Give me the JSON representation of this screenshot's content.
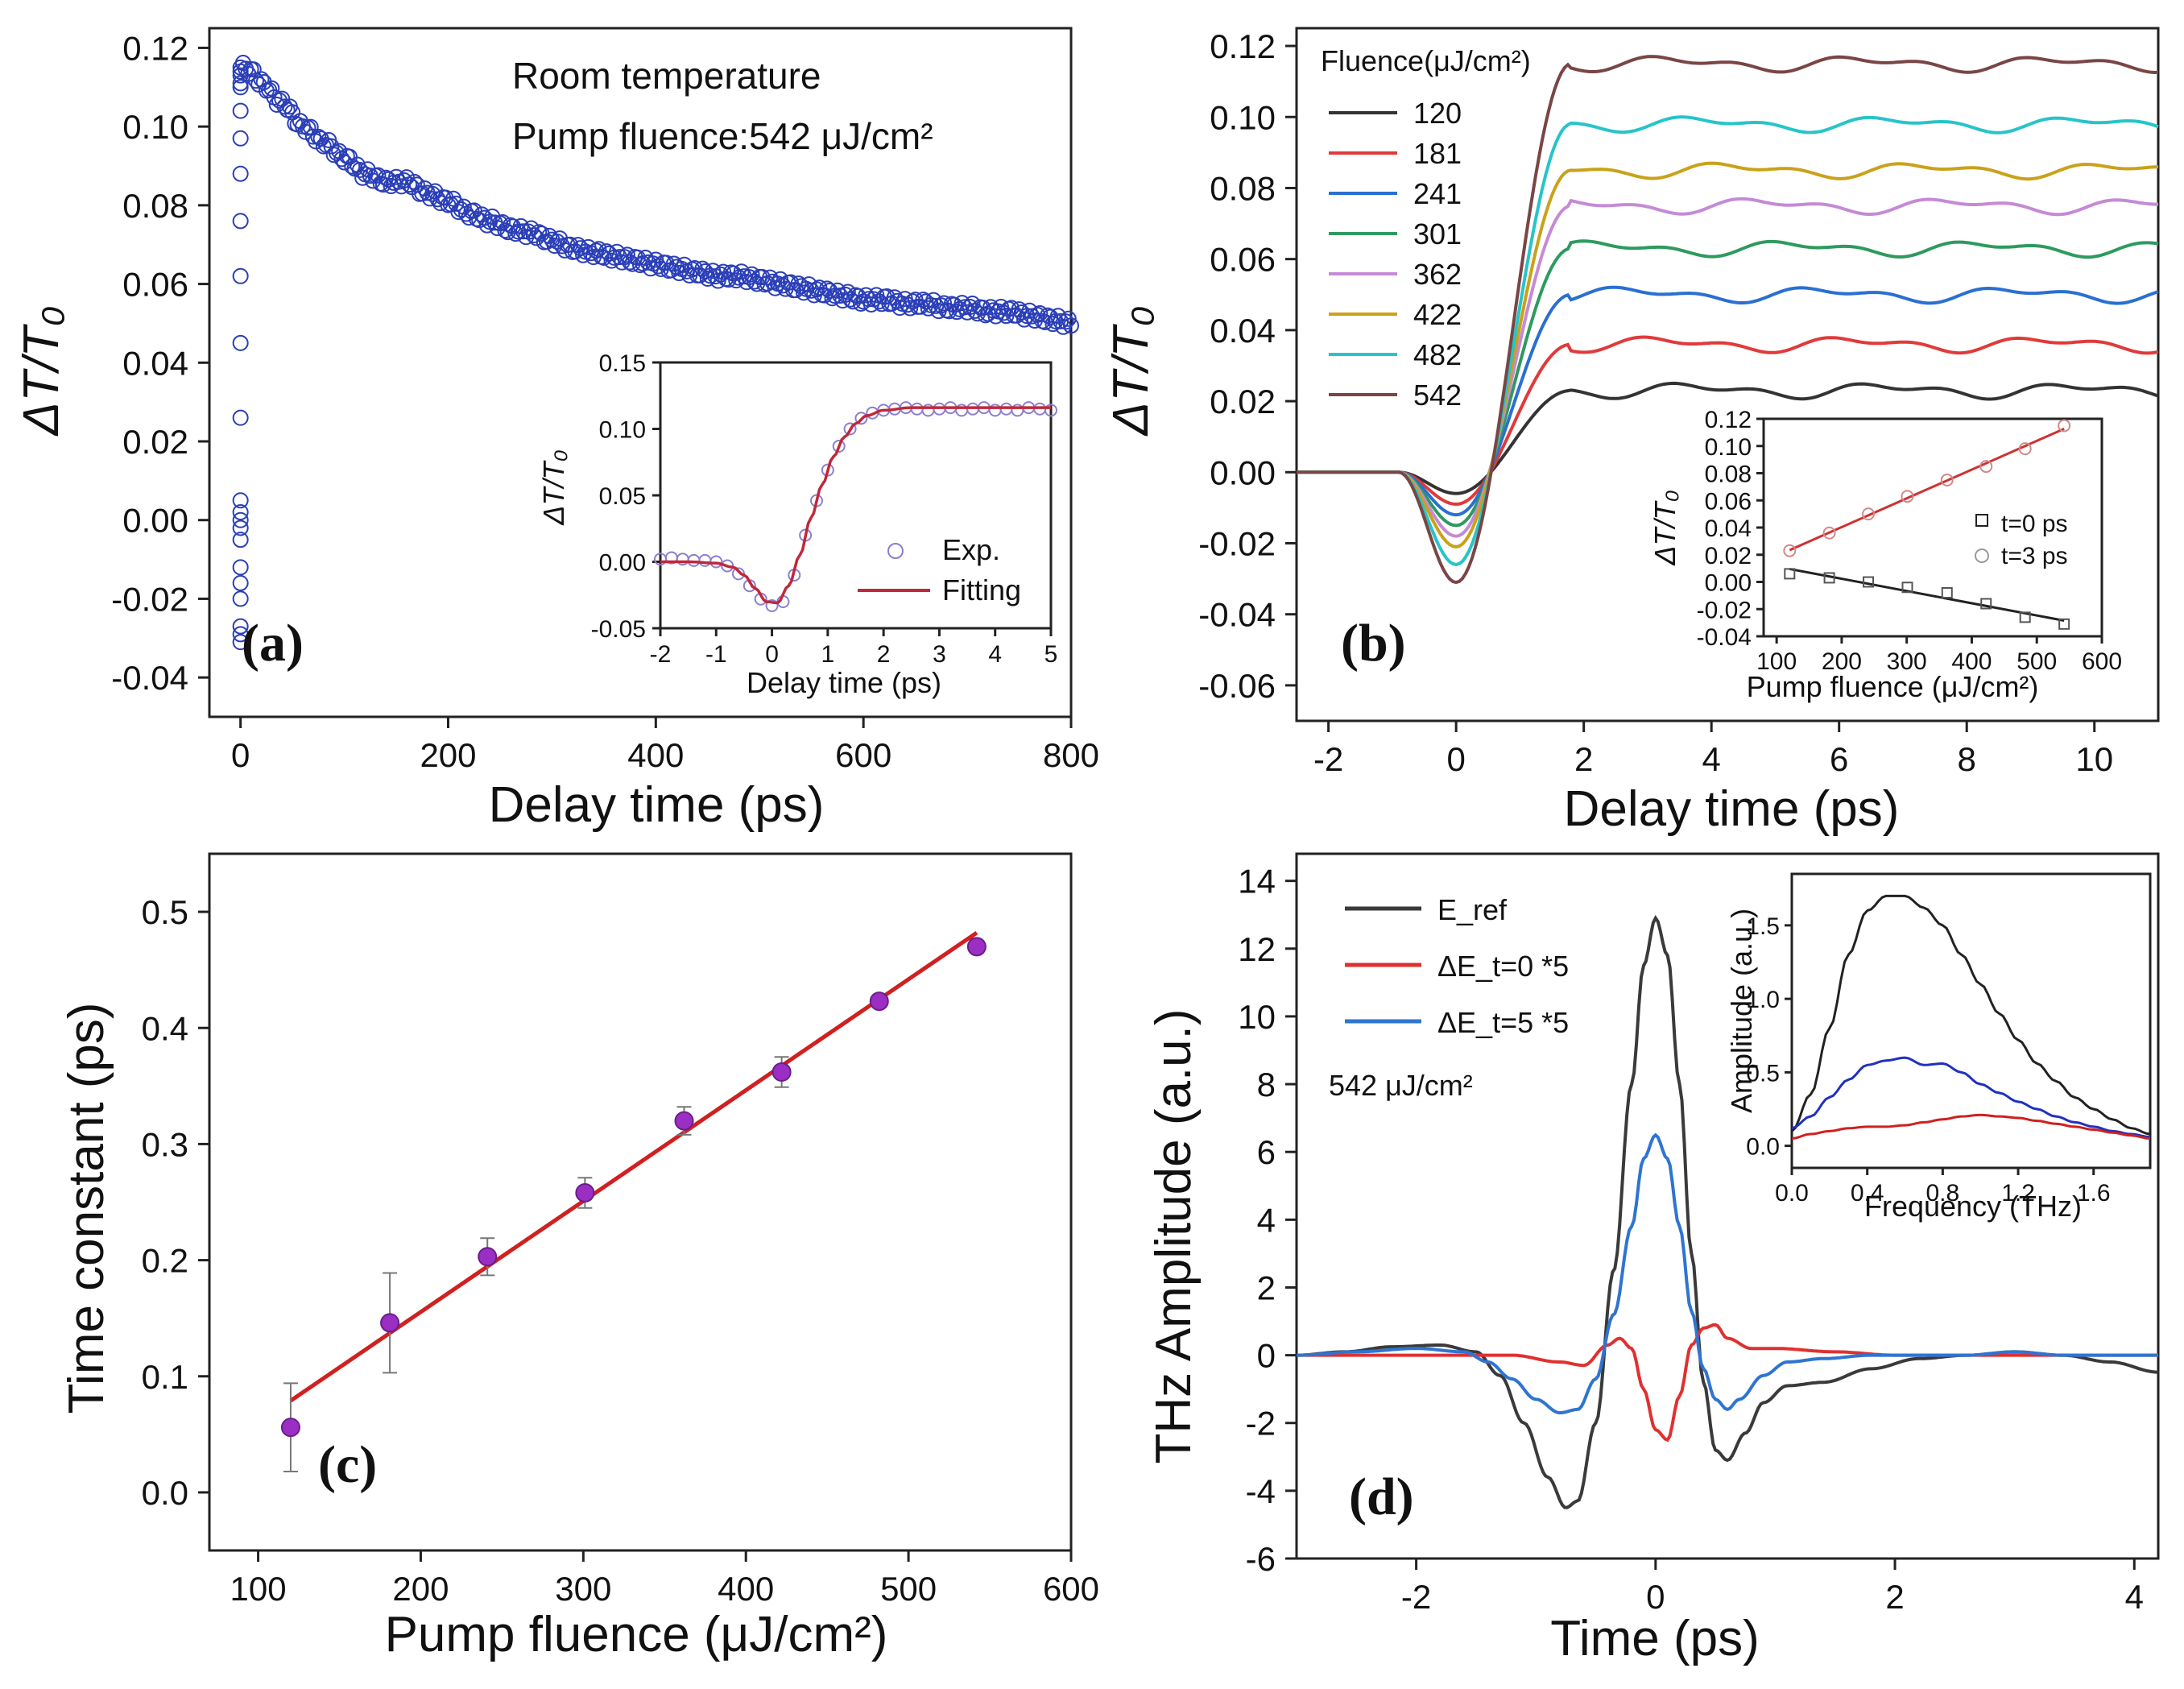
{
  "chart_data": [
    {
      "id": "a",
      "type": "scatter",
      "panel_label": "(a)",
      "annotations": [
        "Room temperature",
        "Pump fluence:542 μJ/cm²"
      ],
      "xlabel": "Delay time (ps)",
      "ylabel": "ΔT/T₀",
      "xlim": [
        -30,
        800
      ],
      "ylim": [
        -0.05,
        0.125
      ],
      "xticks": [
        0,
        200,
        400,
        600,
        800
      ],
      "yticks": [
        -0.04,
        -0.02,
        0.0,
        0.02,
        0.04,
        0.06,
        0.08,
        0.1,
        0.12
      ],
      "ytick_labels": [
        "-0.04",
        "-0.02",
        "0.00",
        "0.02",
        "0.04",
        "0.06",
        "0.08",
        "0.10",
        "0.12"
      ],
      "series": [
        {
          "name": "Exp.",
          "color": "#2b3fb8",
          "marker": "circle",
          "x": [
            0,
            0,
            0,
            0,
            0,
            0,
            0,
            0,
            0,
            0,
            0,
            0,
            0,
            0,
            0,
            0,
            0,
            0,
            0,
            0,
            0,
            0,
            0,
            5,
            10,
            20,
            40,
            60,
            80,
            100,
            120,
            140,
            160,
            180,
            200,
            220,
            240,
            260,
            280,
            300,
            320,
            340,
            360,
            380,
            400,
            420,
            440,
            460,
            480,
            500,
            520,
            540,
            560,
            580,
            600,
            620,
            640,
            660,
            680,
            700,
            720,
            740,
            760,
            780,
            800
          ],
          "y": [
            -0.031,
            -0.029,
            -0.027,
            -0.02,
            -0.016,
            -0.012,
            -0.005,
            -0.002,
            0.0,
            0.002,
            0.005,
            0.026,
            0.045,
            0.062,
            0.076,
            0.088,
            0.097,
            0.104,
            0.11,
            0.111,
            0.113,
            0.114,
            0.115,
            0.115,
            0.114,
            0.111,
            0.106,
            0.1,
            0.096,
            0.092,
            0.088,
            0.086,
            0.086,
            0.083,
            0.081,
            0.078,
            0.076,
            0.074,
            0.073,
            0.071,
            0.069,
            0.068,
            0.067,
            0.066,
            0.065,
            0.064,
            0.063,
            0.062,
            0.062,
            0.061,
            0.06,
            0.059,
            0.058,
            0.057,
            0.056,
            0.056,
            0.055,
            0.055,
            0.054,
            0.054,
            0.053,
            0.053,
            0.052,
            0.051,
            0.05
          ]
        }
      ],
      "inset": {
        "xlabel": "Delay time (ps)",
        "ylabel": "ΔT/T₀",
        "xlim": [
          -2,
          5
        ],
        "ylim": [
          -0.05,
          0.15
        ],
        "xticks": [
          -2,
          -1,
          0,
          1,
          2,
          3,
          4,
          5
        ],
        "yticks": [
          -0.05,
          0.0,
          0.05,
          0.1,
          0.15
        ],
        "ytick_labels": [
          "-0.05",
          "0.00",
          "0.05",
          "0.10",
          "0.15"
        ],
        "legend": [
          "Exp.",
          "Fitting"
        ],
        "exp": {
          "x": [
            -2,
            -1.8,
            -1.6,
            -1.4,
            -1.2,
            -1.0,
            -0.8,
            -0.6,
            -0.4,
            -0.2,
            0.0,
            0.2,
            0.4,
            0.6,
            0.8,
            1.0,
            1.2,
            1.4,
            1.6,
            1.8,
            2.0,
            2.2,
            2.4,
            2.6,
            2.8,
            3.0,
            3.2,
            3.4,
            3.6,
            3.8,
            4.0,
            4.2,
            4.4,
            4.6,
            4.8,
            5.0
          ],
          "y": [
            0.002,
            0.003,
            0.002,
            0.001,
            0.001,
            0.0,
            -0.003,
            -0.009,
            -0.018,
            -0.028,
            -0.033,
            -0.03,
            -0.01,
            0.02,
            0.046,
            0.069,
            0.087,
            0.1,
            0.108,
            0.112,
            0.114,
            0.115,
            0.116,
            0.115,
            0.114,
            0.115,
            0.116,
            0.114,
            0.115,
            0.116,
            0.114,
            0.115,
            0.114,
            0.116,
            0.115,
            0.114
          ]
        },
        "fit": {
          "x": [
            -2,
            -1.5,
            -1.0,
            -0.7,
            -0.5,
            -0.3,
            -0.1,
            0.1,
            0.3,
            0.5,
            0.7,
            0.9,
            1.1,
            1.3,
            1.5,
            1.7,
            2.0,
            2.5,
            3.0,
            4.0,
            5.0
          ],
          "y": [
            0.0,
            0.0,
            -0.001,
            -0.004,
            -0.01,
            -0.02,
            -0.03,
            -0.031,
            -0.018,
            0.005,
            0.033,
            0.058,
            0.079,
            0.094,
            0.104,
            0.11,
            0.114,
            0.116,
            0.116,
            0.116,
            0.116
          ]
        }
      }
    },
    {
      "id": "b",
      "type": "line",
      "panel_label": "(b)",
      "xlabel": "Delay time (ps)",
      "ylabel": "ΔT/T₀",
      "xlim": [
        -2.5,
        11
      ],
      "ylim": [
        -0.07,
        0.125
      ],
      "xticks": [
        -2,
        0,
        2,
        4,
        6,
        8,
        10
      ],
      "yticks": [
        -0.06,
        -0.04,
        -0.02,
        0.0,
        0.02,
        0.04,
        0.06,
        0.08,
        0.1,
        0.12
      ],
      "ytick_labels": [
        "-0.06",
        "-0.04",
        "-0.02",
        "0.00",
        "0.02",
        "0.04",
        "0.06",
        "0.08",
        "0.10",
        "0.12"
      ],
      "legend_title": "Fluence(μJ/cm²)",
      "series": [
        {
          "name": "120",
          "color": "#333333",
          "dip": -0.006,
          "plateau": 0.023
        },
        {
          "name": "181",
          "color": "#e03a3a",
          "dip": -0.009,
          "plateau": 0.036
        },
        {
          "name": "241",
          "color": "#2a6fd1",
          "dip": -0.012,
          "plateau": 0.05
        },
        {
          "name": "301",
          "color": "#2e9a5f",
          "dip": -0.015,
          "plateau": 0.063
        },
        {
          "name": "362",
          "color": "#c58ad6",
          "dip": -0.018,
          "plateau": 0.075
        },
        {
          "name": "422",
          "color": "#c9a21a",
          "dip": -0.021,
          "plateau": 0.085
        },
        {
          "name": "482",
          "color": "#27c4c9",
          "dip": -0.026,
          "plateau": 0.098
        },
        {
          "name": "542",
          "color": "#7a4545",
          "dip": -0.031,
          "plateau": 0.115
        }
      ],
      "inset": {
        "xlabel": "Pump fluence (μJ/cm²)",
        "ylabel": "ΔT/T₀",
        "xlim": [
          80,
          600
        ],
        "ylim": [
          -0.04,
          0.12
        ],
        "xticks": [
          100,
          200,
          300,
          400,
          500,
          600
        ],
        "yticks": [
          -0.04,
          -0.02,
          0.0,
          0.02,
          0.04,
          0.06,
          0.08,
          0.1,
          0.12
        ],
        "ytick_labels": [
          "-0.04",
          "-0.02",
          "0.00",
          "0.02",
          "0.04",
          "0.06",
          "0.08",
          "0.10",
          "0.12"
        ],
        "legend": [
          "t=0 ps",
          "t=3 ps"
        ],
        "fluence": [
          120,
          181,
          241,
          301,
          362,
          422,
          482,
          542
        ],
        "t0": [
          0.006,
          0.003,
          0.0,
          -0.004,
          -0.008,
          -0.016,
          -0.026,
          -0.031
        ],
        "t3": [
          0.023,
          0.036,
          0.05,
          0.063,
          0.075,
          0.085,
          0.098,
          0.115
        ]
      }
    },
    {
      "id": "c",
      "type": "scatter",
      "panel_label": "(c)",
      "xlabel": "Pump fluence (μJ/cm²)",
      "ylabel": "Time constant (ps)",
      "xlim": [
        70,
        600
      ],
      "ylim": [
        -0.05,
        0.55
      ],
      "xticks": [
        100,
        200,
        300,
        400,
        500,
        600
      ],
      "yticks": [
        0.0,
        0.1,
        0.2,
        0.3,
        0.4,
        0.5
      ],
      "ytick_labels": [
        "0.0",
        "0.1",
        "0.2",
        "0.3",
        "0.4",
        "0.5"
      ],
      "x": [
        120,
        181,
        241,
        301,
        362,
        422,
        482,
        542
      ],
      "y": [
        0.056,
        0.146,
        0.203,
        0.258,
        0.32,
        0.362,
        0.423,
        0.47
      ],
      "err": [
        0.038,
        0.043,
        0.016,
        0.013,
        0.012,
        0.013,
        0.004,
        0.004
      ],
      "fit": {
        "x": [
          120,
          542
        ],
        "y": [
          0.079,
          0.482
        ]
      }
    },
    {
      "id": "d",
      "type": "line",
      "panel_label": "(d)",
      "xlabel": "Time (ps)",
      "ylabel": "THz Amplitude (a.u.)",
      "annotation": "542 μJ/cm²",
      "xlim": [
        -3,
        4.2
      ],
      "ylim": [
        -6,
        14.8
      ],
      "xticks": [
        -2,
        0,
        2,
        4
      ],
      "yticks": [
        -6,
        -4,
        -2,
        0,
        2,
        4,
        6,
        8,
        10,
        12,
        14
      ],
      "series": [
        {
          "name": "E_ref",
          "color": "#3a3a3a",
          "x": [
            -3.0,
            -2.6,
            -2.2,
            -1.8,
            -1.5,
            -1.3,
            -1.1,
            -0.9,
            -0.75,
            -0.65,
            -0.5,
            -0.35,
            -0.2,
            -0.1,
            0.0,
            0.1,
            0.2,
            0.3,
            0.4,
            0.5,
            0.6,
            0.75,
            0.9,
            1.1,
            1.4,
            1.8,
            2.2,
            2.6,
            3.0,
            3.4,
            3.8,
            4.2
          ],
          "y": [
            0.0,
            0.1,
            0.25,
            0.3,
            0.1,
            -0.6,
            -2.0,
            -3.6,
            -4.5,
            -4.3,
            -2.0,
            2.5,
            8.0,
            11.5,
            12.9,
            11.8,
            8.0,
            3.0,
            -0.8,
            -2.8,
            -3.1,
            -2.3,
            -1.4,
            -0.9,
            -0.8,
            -0.4,
            -0.1,
            0.0,
            0.1,
            0.0,
            -0.2,
            -0.5
          ]
        },
        {
          "name": "ΔE_t=0 *5",
          "color": "#e03030",
          "x": [
            -3.0,
            -2.0,
            -1.2,
            -0.8,
            -0.6,
            -0.4,
            -0.3,
            -0.2,
            -0.1,
            0.0,
            0.1,
            0.2,
            0.3,
            0.4,
            0.5,
            0.6,
            0.8,
            1.0,
            1.5,
            2.0,
            3.0,
            4.2
          ],
          "y": [
            0.0,
            0.0,
            0.0,
            -0.2,
            -0.3,
            0.3,
            0.5,
            0.2,
            -1.0,
            -2.2,
            -2.5,
            -1.2,
            0.3,
            0.8,
            0.9,
            0.5,
            0.2,
            0.2,
            0.1,
            0.0,
            0.0,
            0.0
          ]
        },
        {
          "name": "ΔE_t=5 *5",
          "color": "#2f74d1",
          "x": [
            -3.0,
            -2.5,
            -2.0,
            -1.6,
            -1.4,
            -1.2,
            -1.0,
            -0.8,
            -0.65,
            -0.5,
            -0.35,
            -0.2,
            -0.1,
            0.0,
            0.1,
            0.2,
            0.3,
            0.4,
            0.5,
            0.6,
            0.7,
            0.9,
            1.1,
            1.4,
            1.8,
            2.2,
            2.6,
            3.0,
            3.4,
            3.8,
            4.2
          ],
          "y": [
            0.0,
            0.1,
            0.2,
            0.1,
            -0.2,
            -0.7,
            -1.3,
            -1.7,
            -1.6,
            -0.7,
            1.2,
            3.8,
            5.8,
            6.5,
            5.8,
            3.8,
            1.3,
            -0.4,
            -1.3,
            -1.6,
            -1.3,
            -0.6,
            -0.2,
            -0.1,
            0.0,
            0.0,
            0.0,
            0.1,
            0.0,
            0.0,
            0.0
          ]
        }
      ],
      "legend": [
        "E_ref",
        "ΔE_t=0 *5",
        "ΔE_t=5 *5"
      ],
      "inset": {
        "xlabel": "Frequency (THz)",
        "ylabel": "Amplitude (a.u.)",
        "xlim": [
          0,
          1.9
        ],
        "ylim": [
          -0.15,
          1.85
        ],
        "xticks": [
          0.0,
          0.4,
          0.8,
          1.2,
          1.6
        ],
        "xtick_labels": [
          "0.0",
          "0.4",
          "0.8",
          "1.2",
          "1.6"
        ],
        "yticks": [
          0.0,
          0.5,
          1.0,
          1.5
        ],
        "ytick_labels": [
          "0.0",
          "0.5",
          "1.0",
          "1.5"
        ],
        "freq": [
          0.0,
          0.1,
          0.2,
          0.3,
          0.4,
          0.5,
          0.6,
          0.7,
          0.8,
          0.9,
          1.0,
          1.1,
          1.2,
          1.3,
          1.4,
          1.5,
          1.6,
          1.7,
          1.8,
          1.9
        ],
        "ref": [
          0.1,
          0.35,
          0.8,
          1.3,
          1.6,
          1.7,
          1.7,
          1.62,
          1.5,
          1.3,
          1.1,
          0.9,
          0.72,
          0.56,
          0.44,
          0.33,
          0.25,
          0.18,
          0.12,
          0.08
        ],
        "t5": [
          0.12,
          0.2,
          0.33,
          0.45,
          0.55,
          0.58,
          0.6,
          0.55,
          0.56,
          0.5,
          0.42,
          0.36,
          0.3,
          0.25,
          0.2,
          0.16,
          0.13,
          0.1,
          0.08,
          0.06
        ],
        "t0": [
          0.05,
          0.08,
          0.1,
          0.12,
          0.13,
          0.13,
          0.14,
          0.16,
          0.18,
          0.2,
          0.21,
          0.2,
          0.19,
          0.17,
          0.15,
          0.13,
          0.11,
          0.09,
          0.07,
          0.05
        ]
      }
    }
  ]
}
